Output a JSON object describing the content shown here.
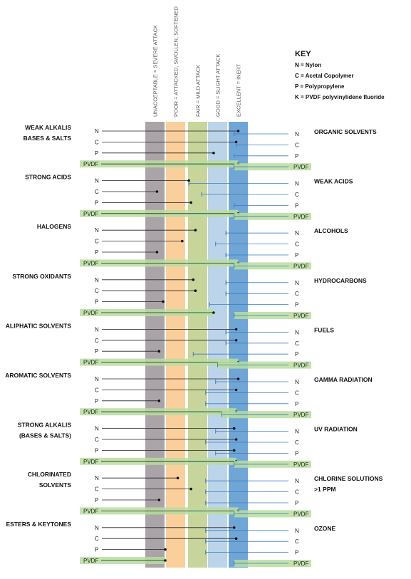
{
  "chart_data": {
    "type": "dot-range",
    "columns": [
      {
        "label": "UNACCEPTABLE = SEVERE ATTACK",
        "color": "#aaa4a8",
        "rank": 1
      },
      {
        "label": "POOR = ATTACKED, SWOLLEN, SOFTENED",
        "color": "#fbcf9b",
        "rank": 2
      },
      {
        "label": "FAIR = MILD ATTACK",
        "color": "#c7d59a",
        "rank": 3
      },
      {
        "label": "GOOD = SLIGHT ATTACK",
        "color": "#bcd4ea",
        "rank": 4
      },
      {
        "label": "EXCELLENT = INERT",
        "color": "#6fa6d6",
        "rank": 5
      }
    ],
    "key": {
      "title": "KEY",
      "items": [
        "N = Nylon",
        "C = Acetal Copolymer",
        "P = Polypropylene",
        "K = PVDF polyvinylidene fluoride"
      ]
    },
    "material_labels": [
      "N",
      "C",
      "P",
      "PVDF"
    ],
    "left_groups": [
      {
        "label": [
          "WEAK ALKALIS",
          "BASES & SALTS"
        ],
        "values": [
          5.0,
          4.9,
          3.8,
          5.0
        ]
      },
      {
        "label": [
          "STRONG ACIDS"
        ],
        "values": [
          2.6,
          1.1,
          2.7,
          5.0
        ]
      },
      {
        "label": [
          "HALOGENS"
        ],
        "values": [
          2.9,
          2.3,
          1.1,
          5.0
        ]
      },
      {
        "label": [
          "STRONG OXIDANTS"
        ],
        "values": [
          2.8,
          2.9,
          1.4,
          3.8
        ]
      },
      {
        "label": [
          "ALIPHATIC SOLVENTS"
        ],
        "values": [
          4.9,
          4.9,
          1.2,
          5.0
        ]
      },
      {
        "label": [
          "AROMATIC SOLVENTS"
        ],
        "values": [
          5.0,
          4.9,
          1.2,
          4.9
        ]
      },
      {
        "label": [
          "STRONG ALKALIS",
          "(BASES & SALTS)"
        ],
        "values": [
          4.8,
          4.9,
          4.8,
          4.9
        ]
      },
      {
        "label": [
          "CHLORINATED",
          "SOLVENTS"
        ],
        "values": [
          2.1,
          2.7,
          1.2,
          5.0
        ]
      },
      {
        "label": [
          "ESTERS & KEYTONES"
        ],
        "values": [
          4.8,
          4.9,
          1.5,
          1.5
        ]
      }
    ],
    "right_groups": [
      {
        "label": [
          "ORGANIC SOLVENTS"
        ],
        "values": [
          4.8,
          4.9,
          4.8,
          4.8
        ]
      },
      {
        "label": [
          "WEAK ACIDS"
        ],
        "values": [
          2.6,
          3.2,
          4.8,
          4.8
        ]
      },
      {
        "label": [
          "ALCOHOLS"
        ],
        "values": [
          4.4,
          3.9,
          4.4,
          4.8
        ]
      },
      {
        "label": [
          "HYDROCARBONS"
        ],
        "values": [
          4.4,
          4.4,
          3.6,
          4.8
        ]
      },
      {
        "label": [
          "FUELS"
        ],
        "values": [
          4.4,
          4.4,
          2.8,
          4.0
        ]
      },
      {
        "label": [
          "GAMMA RADIATION"
        ],
        "values": [
          3.9,
          3.4,
          3.4,
          4.2
        ]
      },
      {
        "label": [
          "UV RADIATION"
        ],
        "values": [
          3.9,
          3.4,
          3.9,
          4.8
        ]
      },
      {
        "label": [
          "CHLORINE SOLUTIONS",
          ">1 PPM"
        ],
        "values": [
          3.4,
          3.4,
          3.4,
          4.8
        ]
      },
      {
        "label": [
          "OZONE"
        ],
        "values": [
          3.4,
          3.4,
          3.4,
          4.8
        ]
      }
    ]
  }
}
